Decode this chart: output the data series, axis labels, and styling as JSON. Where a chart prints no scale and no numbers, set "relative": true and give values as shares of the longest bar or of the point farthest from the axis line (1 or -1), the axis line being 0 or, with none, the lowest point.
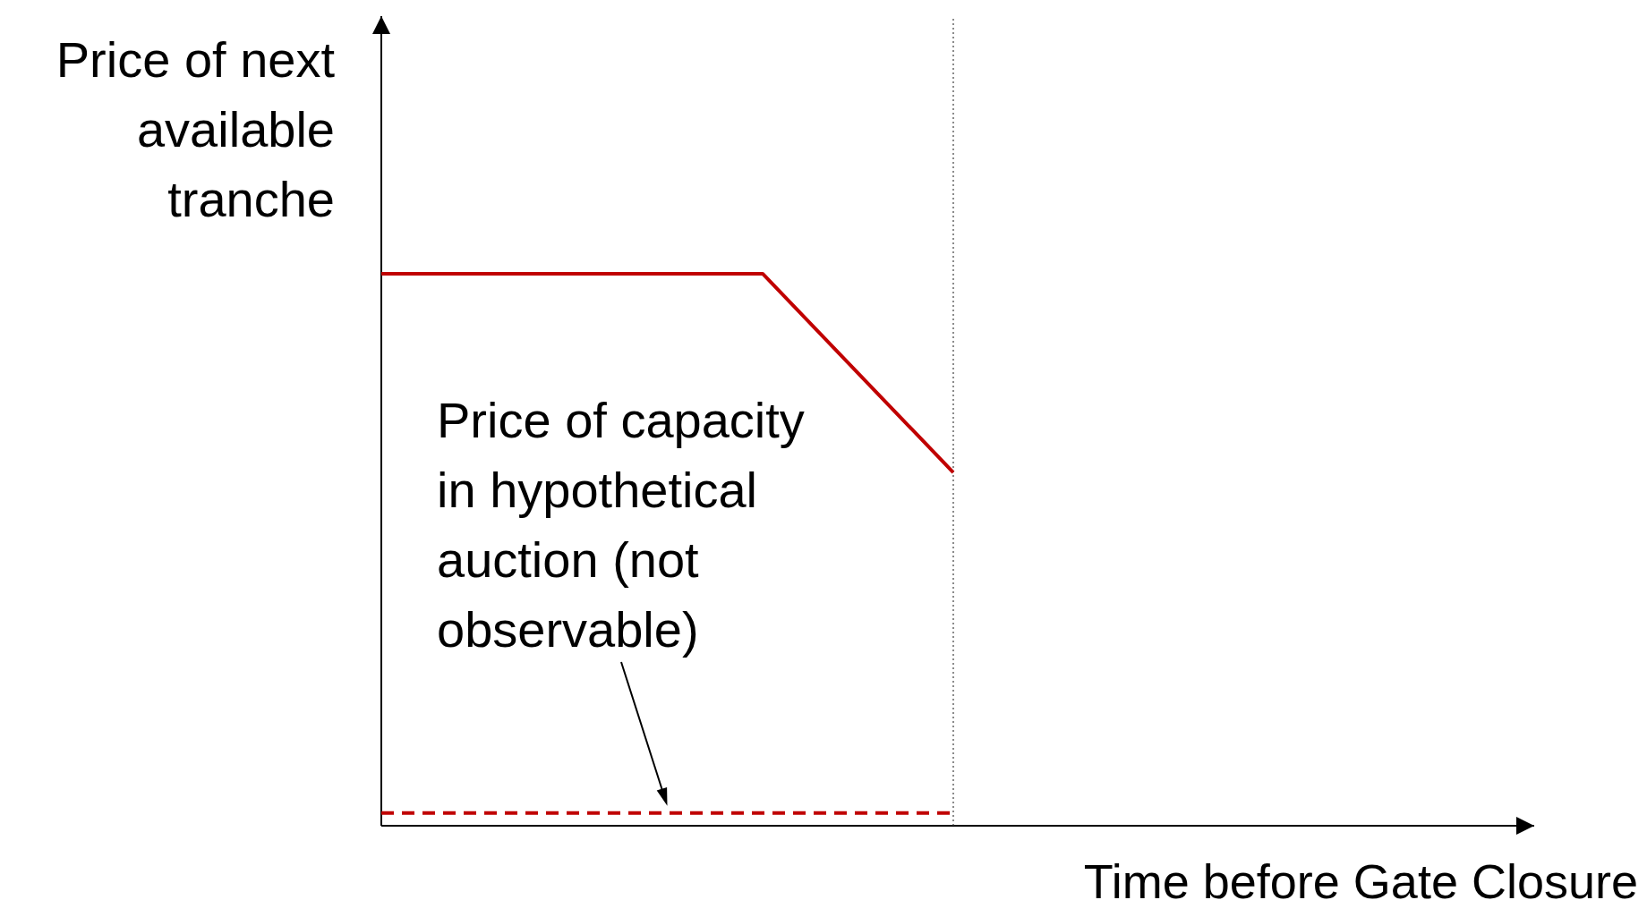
{
  "chart_data": {
    "type": "line",
    "relative": true,
    "xlabel": "Time before Gate Closure",
    "ylabel": "Price of next\navailable\ntranche",
    "categories": [
      null,
      null,
      null,
      null,
      null,
      null,
      null
    ],
    "series": [
      {
        "color": "#c00000",
        "line_style": "solid",
        "values": [
          1,
          1,
          1,
          0.64,
          null,
          null,
          null
        ]
      },
      {
        "color": "#c00000",
        "line_style": "dashed",
        "values": [
          0.023,
          0.023,
          0.023,
          0.023,
          null,
          null,
          null
        ]
      }
    ],
    "annotations": [
      "Price of capacity\nin hypothetical\nauction (not\nobservable)"
    ]
  }
}
